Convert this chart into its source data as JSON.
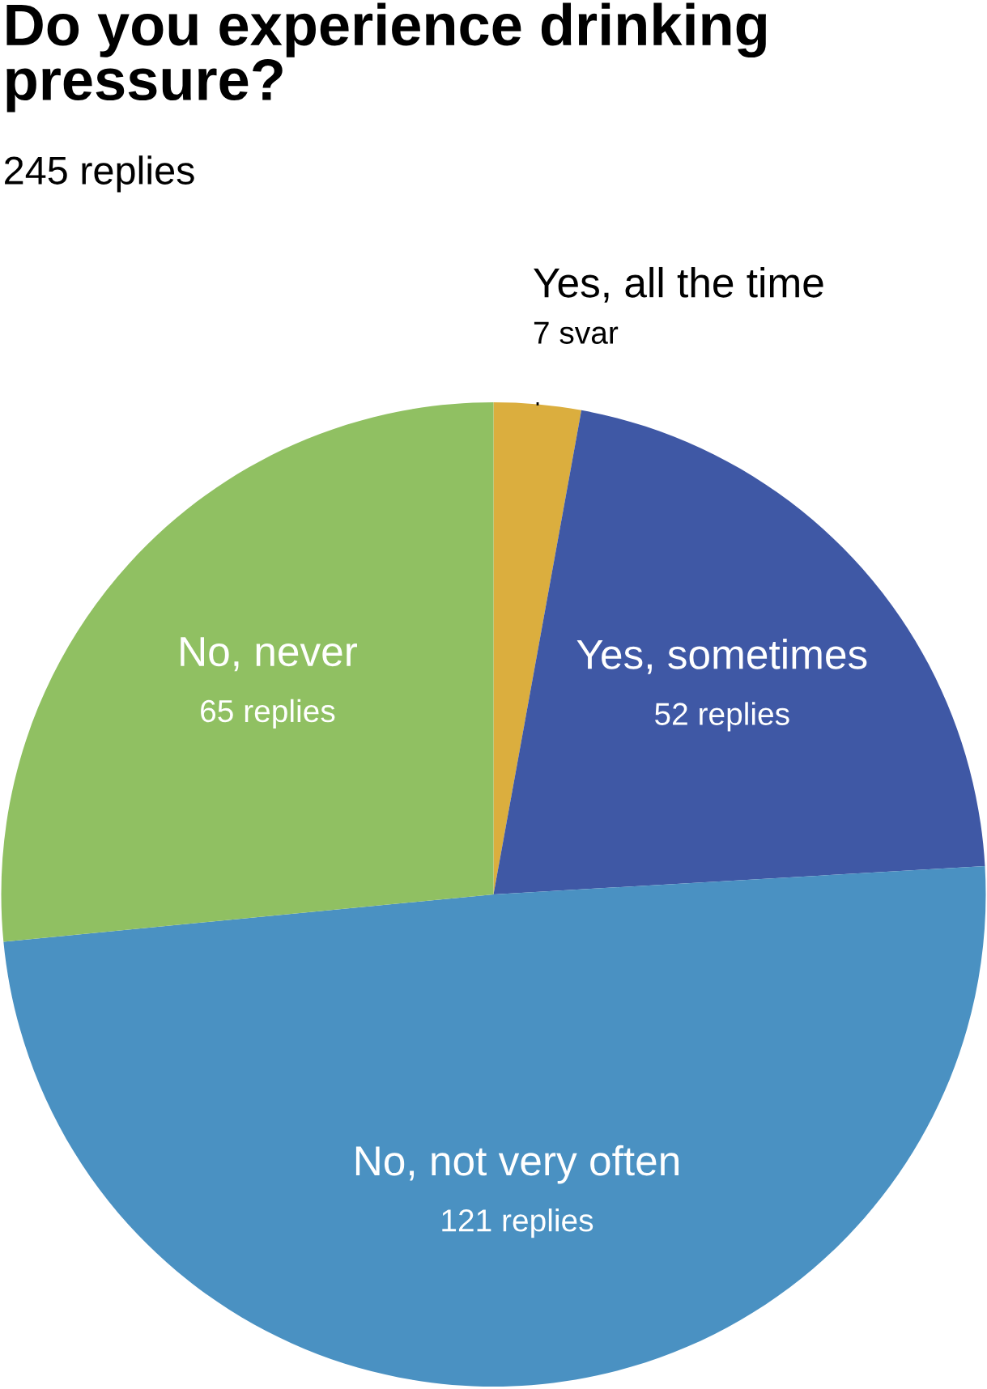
{
  "chart_data": {
    "type": "pie",
    "title": "Do you experience drinking pressure?",
    "subtitle": "245 replies",
    "categories": [
      "Yes, all the time",
      "Yes, sometimes",
      "No, not very often",
      "No, never"
    ],
    "values": [
      7,
      52,
      121,
      65
    ],
    "value_labels": [
      "7 svar",
      "52 replies",
      "121 replies",
      "65 replies"
    ],
    "colors": [
      "#dbae3e",
      "#3f58a5",
      "#4a91c2",
      "#90c062"
    ],
    "legend": false
  }
}
